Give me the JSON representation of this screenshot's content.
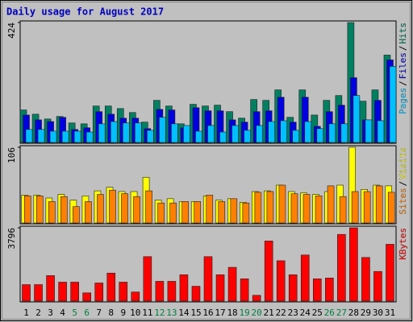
{
  "chart_data": {
    "type": "bar",
    "title": "Daily usage for August 2017",
    "categories": [
      "1",
      "2",
      "3",
      "4",
      "5",
      "6",
      "7",
      "8",
      "9",
      "10",
      "11",
      "12",
      "13",
      "14",
      "15",
      "16",
      "17",
      "18",
      "19",
      "20",
      "21",
      "22",
      "23",
      "24",
      "25",
      "26",
      "27",
      "28",
      "29",
      "30",
      "31"
    ],
    "weekend_indices": [
      4,
      5,
      11,
      12,
      18,
      19,
      25,
      26
    ],
    "weekend_color": "#008040",
    "legend_separator": "/",
    "panels": [
      {
        "ylim": [
          0,
          424
        ],
        "yticks": [
          424
        ],
        "series": [
          {
            "name": "Hits",
            "color": "#008060",
            "values": [
              115,
              100,
              83,
              92,
              69,
              66,
              129,
              129,
              120,
              106,
              72,
              149,
              129,
              66,
              135,
              129,
              132,
              109,
              86,
              152,
              149,
              186,
              89,
              186,
              97,
              149,
              166,
              424,
              146,
              186,
              309
            ]
          },
          {
            "name": "Files",
            "color": "#0000e0",
            "values": [
              97,
              80,
              74,
              89,
              46,
              52,
              109,
              100,
              86,
              86,
              49,
              117,
              115,
              52,
              123,
              112,
              112,
              80,
              72,
              109,
              112,
              160,
              72,
              160,
              57,
              109,
              132,
              229,
              80,
              149,
              292
            ]
          },
          {
            "name": "Pages",
            "color": "#00c0ff",
            "values": [
              46,
              46,
              40,
              40,
              40,
              37,
              66,
              74,
              69,
              69,
              43,
              89,
              66,
              60,
              40,
              60,
              37,
              60,
              43,
              60,
              74,
              77,
              43,
              74,
              49,
              66,
              66,
              166,
              80,
              77,
              269
            ]
          }
        ]
      },
      {
        "ylim": [
          0,
          106
        ],
        "yticks": [
          106
        ],
        "series": [
          {
            "name": "Visits",
            "color": "#ffff00",
            "values": [
              39,
              39,
              35,
              40,
              32,
              38,
              45,
              50,
              44,
              44,
              64,
              32,
              34,
              30,
              30,
              38,
              32,
              34,
              29,
              44,
              45,
              53,
              44,
              42,
              40,
              44,
              53,
              106,
              47,
              53,
              52
            ]
          },
          {
            "name": "Sites",
            "color": "#ff8000",
            "values": [
              38,
              38,
              30,
              37,
              23,
              30,
              40,
              46,
              41,
              37,
              45,
              28,
              28,
              30,
              30,
              39,
              30,
              34,
              28,
              43,
              44,
              53,
              41,
              40,
              38,
              52,
              37,
              44,
              44,
              52,
              43
            ]
          }
        ]
      },
      {
        "ylim": [
          0,
          3796
        ],
        "yticks": [
          3796
        ],
        "series": [
          {
            "name": "KBytes",
            "color": "#ff0000",
            "values": [
              853,
              853,
              1322,
              981,
              981,
              426,
              938,
              1450,
              981,
              469,
              2303,
              1024,
              1024,
              1365,
              768,
              2303,
              1365,
              1749,
              1152,
              299,
              3113,
              2090,
              1365,
              2388,
              1152,
              1194,
              3455,
              3796,
              2261,
              1535,
              2943
            ]
          }
        ]
      }
    ]
  }
}
